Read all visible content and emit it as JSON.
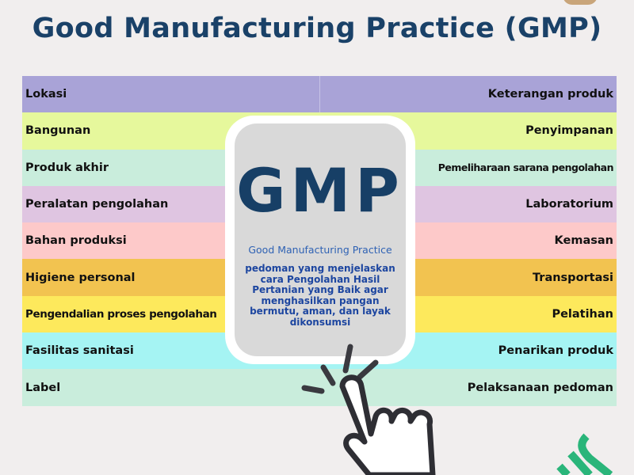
{
  "title": "Good Manufacturing Practice (GMP)",
  "rows": [
    {
      "left": "Lokasi",
      "right": "Keterangan produk",
      "color": "#a9a3d7"
    },
    {
      "left": "Bangunan",
      "right": "Penyimpanan",
      "color": "#e6f89c"
    },
    {
      "left": "Produk akhir",
      "right": "Pemeliharaan sarana pengolahan",
      "color": "#c9eddc"
    },
    {
      "left": "Peralatan pengolahan",
      "right": "Laboratorium",
      "color": "#dfc5e1"
    },
    {
      "left": "Bahan produksi",
      "right": "Kemasan",
      "color": "#fdc9c9"
    },
    {
      "left": "Higiene personal",
      "right": "Transportasi",
      "color": "#f2c350"
    },
    {
      "left": "Pengendalian proses pengolahan",
      "right": "Pelatihan",
      "color": "#fde95c"
    },
    {
      "left": "Fasilitas sanitasi",
      "right": "Penarikan produk",
      "color": "#a5f4f3"
    },
    {
      "left": "Label",
      "right": "Pelaksanaan pedoman",
      "color": "#c9eddc"
    }
  ],
  "card": {
    "acronym": "GMP",
    "subtitle": "Good Manufacturing Practice",
    "description": "pedoman yang menjelaskan cara Pengolahan Hasil Pertanian yang Baik agar menghasilkan pangan bermutu, aman, dan layak dikonsumsi"
  },
  "icons": [
    "pointing-hand-cursor-icon",
    "green-logo-icon"
  ]
}
